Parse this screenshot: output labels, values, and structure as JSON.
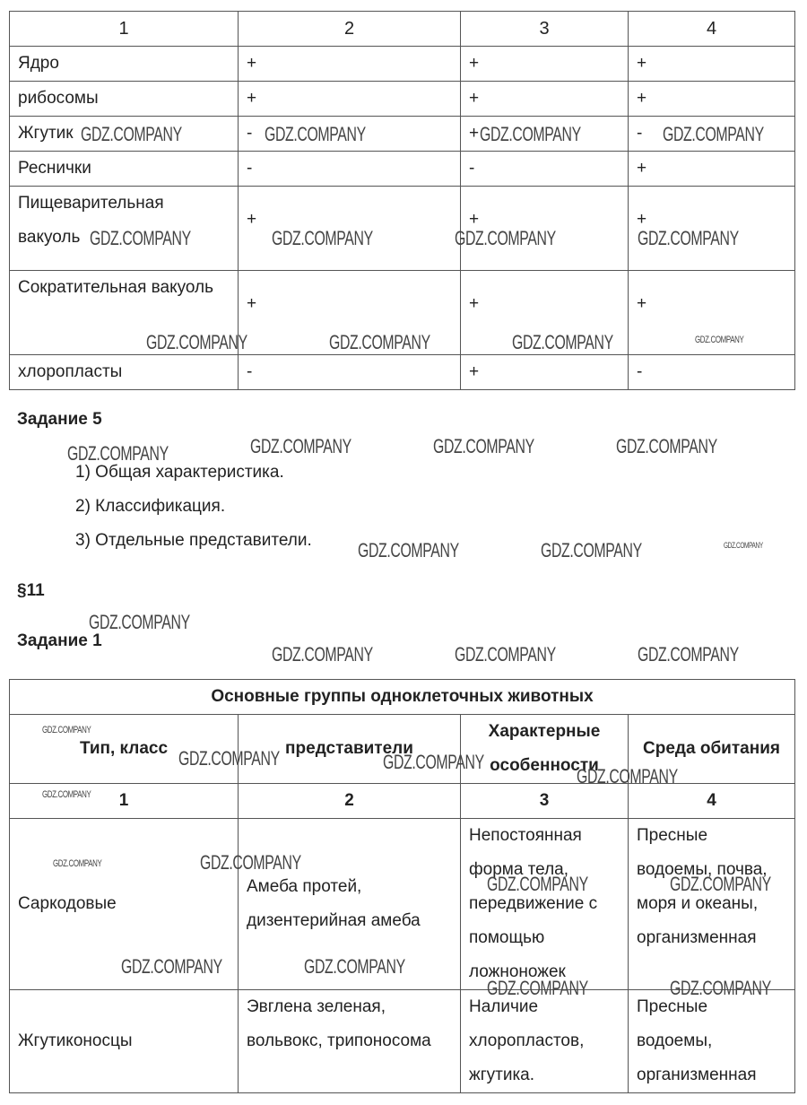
{
  "watermark": "GDZ.COMPANY",
  "table1": {
    "header": [
      "1",
      "2",
      "3",
      "4"
    ],
    "rows": [
      [
        "Ядро",
        "+",
        "+",
        "+"
      ],
      [
        "рибосомы",
        "+",
        "+",
        "+"
      ],
      [
        "Жгутик",
        "-",
        "+",
        "-"
      ],
      [
        "Реснички",
        "-",
        "-",
        "+"
      ],
      [
        "Пищеварительная вакуоль",
        "+",
        "+",
        "+"
      ],
      [
        "Сократительная вакуоль",
        "+",
        "+",
        "+"
      ],
      [
        "хлоропласты",
        "-",
        "+",
        "-"
      ]
    ]
  },
  "task5": {
    "title": "Задание 5",
    "items": [
      "1)  Общая характеристика.",
      "2)  Классификация.",
      "3)  Отдельные представители."
    ]
  },
  "section": "§11",
  "task1": {
    "title": "Задание 1"
  },
  "table2": {
    "title": "Основные группы одноклеточных животных",
    "headers": [
      "Тип, класс",
      "представители",
      "Характерные особенности",
      "Среда обитания"
    ],
    "numbers": [
      "1",
      "2",
      "3",
      "4"
    ],
    "rows": [
      [
        "Саркодовые",
        "Амеба протей, дизентерийная амеба",
        "Непостоянная форма тела, передвижение с помощью ложноножек",
        "Пресные водоемы, почва, моря и океаны, организменная"
      ],
      [
        "Жгутиконосцы",
        "Эвглена зеленая, вольвокс, трипоносома",
        "Наличие хлоропластов, жгутика.",
        "Пресные водоемы, организменная"
      ]
    ]
  }
}
